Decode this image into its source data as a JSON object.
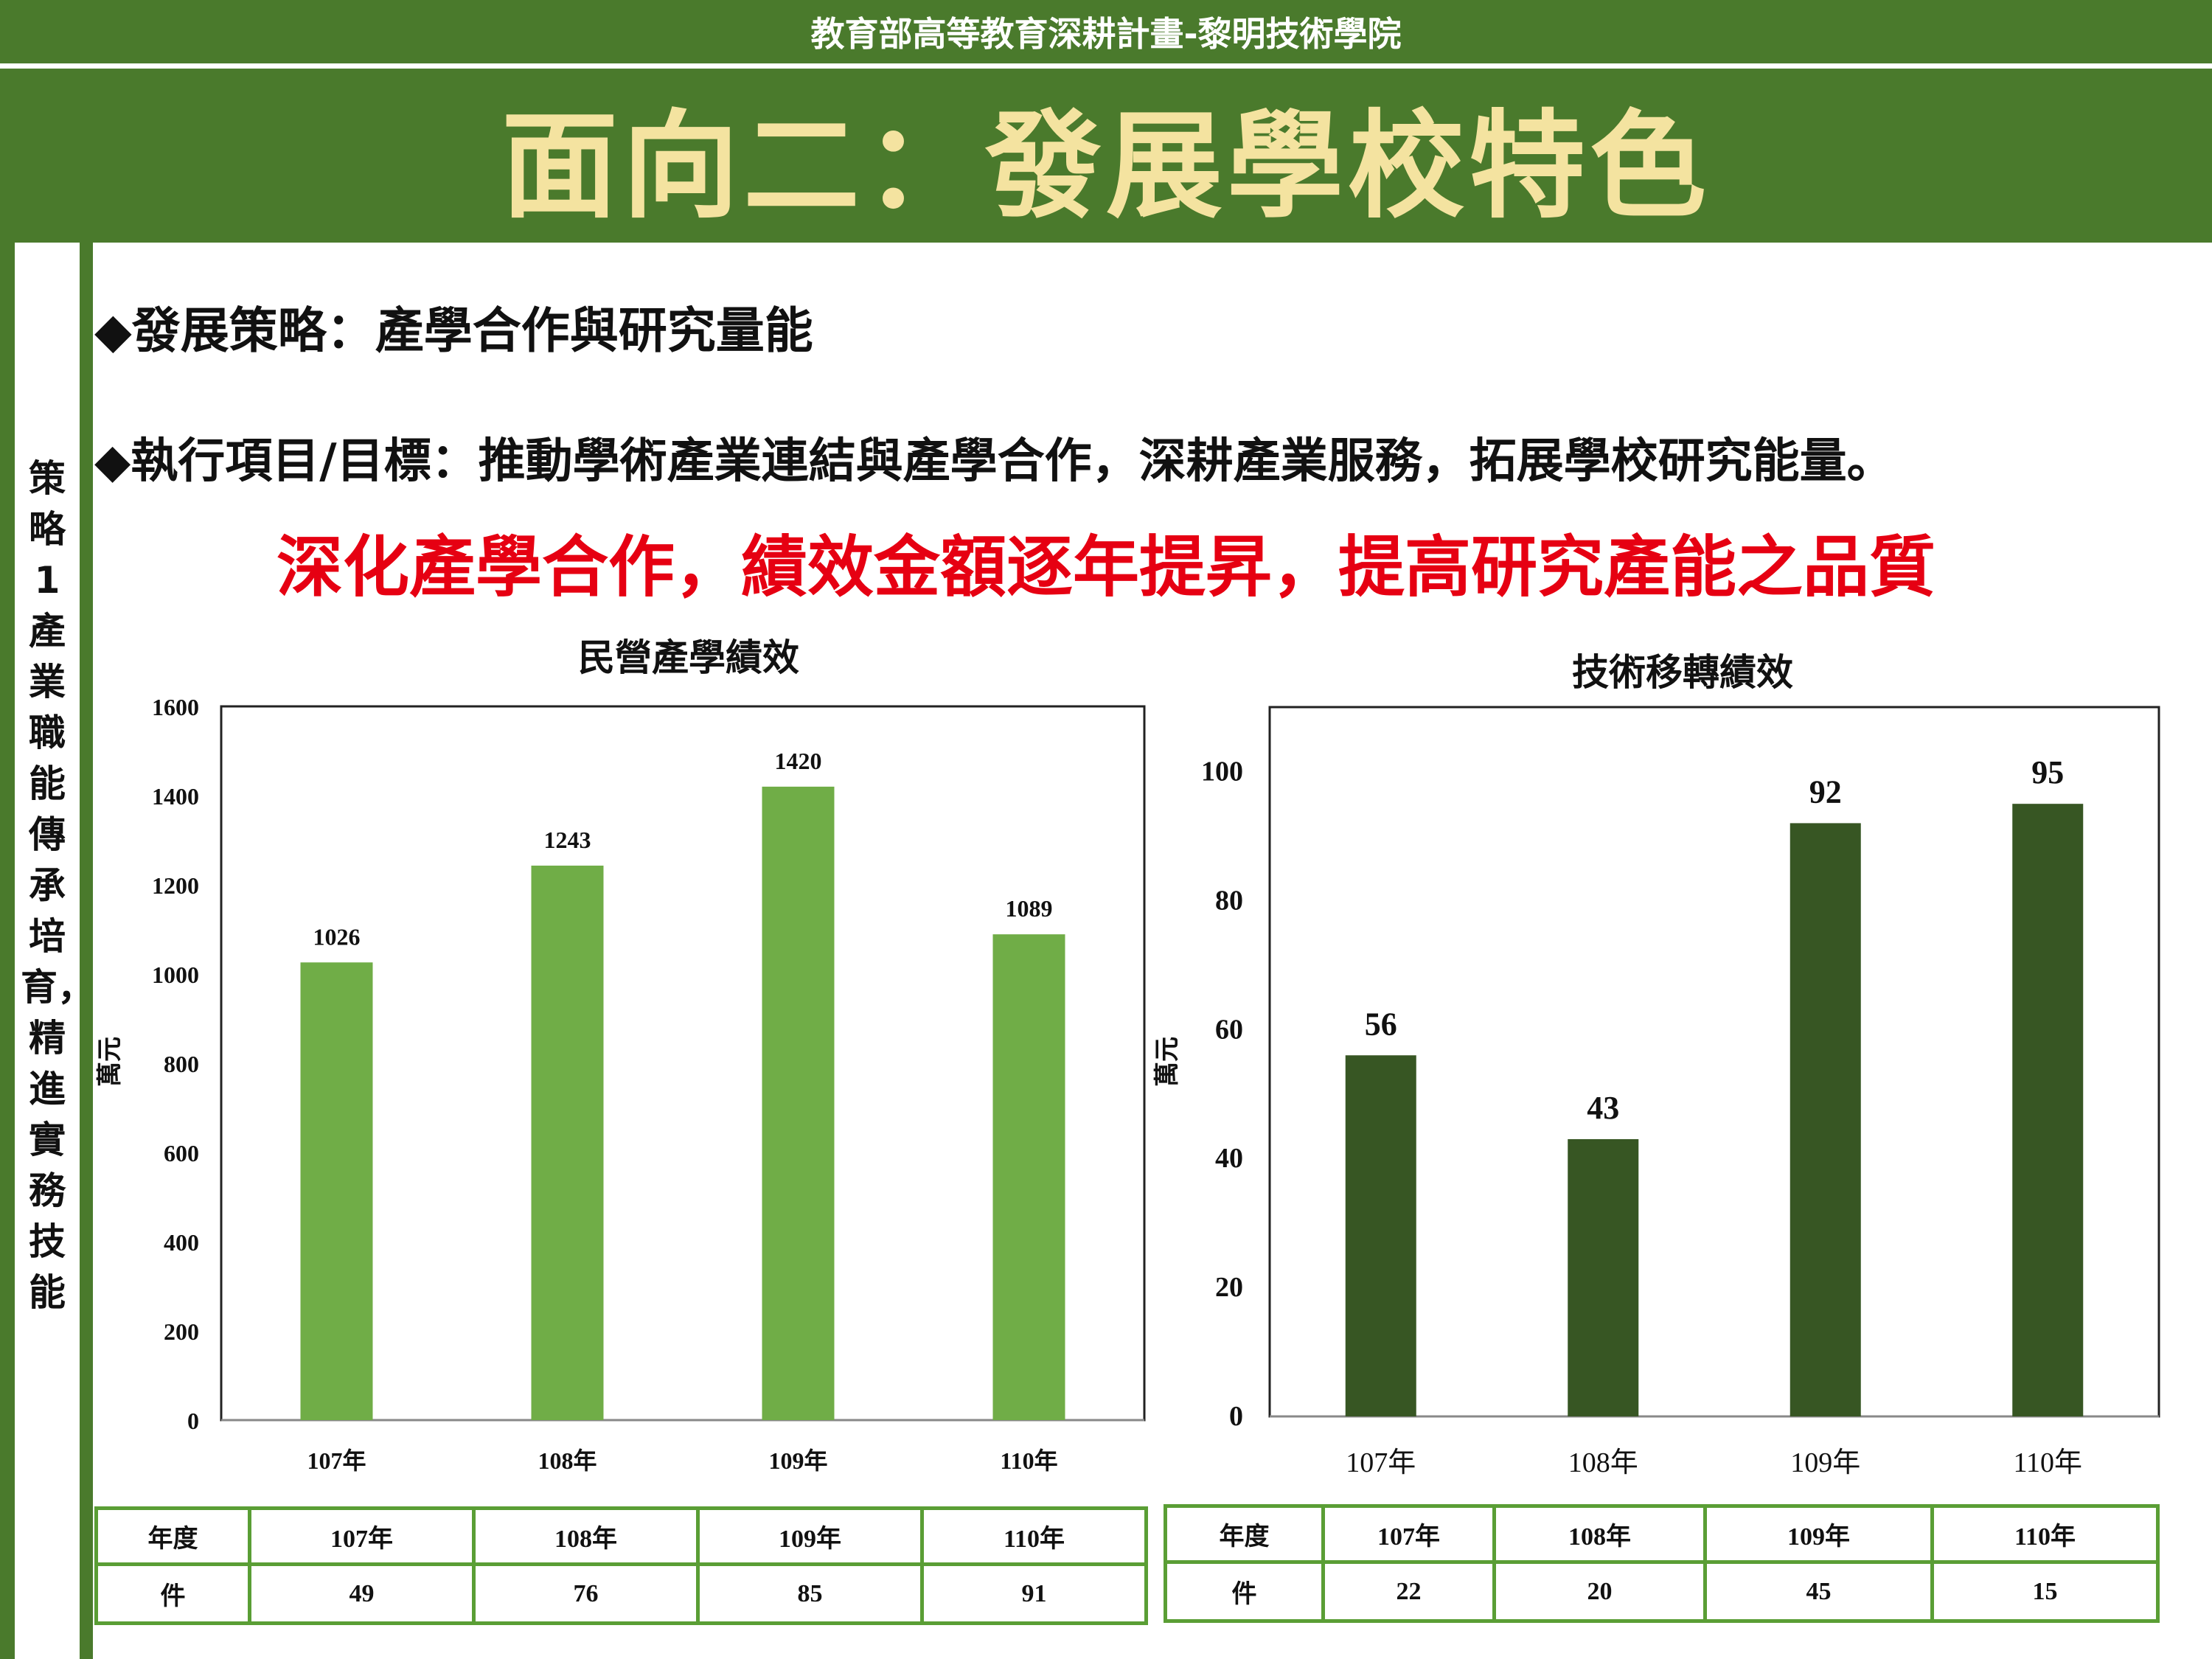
{
  "header": {
    "top_title": "教育部高等教育深耕計畫-黎明技術學院",
    "main_title": "面向二：發展學校特色"
  },
  "sidebar": {
    "text": "策略1產業職能傳承培育，精進實務技能"
  },
  "content": {
    "strategy": "◆發展策略：產學合作與研究量能",
    "execution": "◆執行項目/目標：推動學術產業連結與產學合作，深耕產業服務，拓展學校研究能量。",
    "headline": "深化產學合作，績效金額逐年提昇，提高研究產能之品質"
  },
  "colors": {
    "header_bg": "#4a7a2c",
    "title_text": "#f4e3a0",
    "headline": "#e60012",
    "bar_left": "#70ad47",
    "bar_right": "#375623",
    "table_border": "#5a9e35"
  },
  "chart_data": [
    {
      "type": "bar",
      "title": "民營產學績效",
      "ylabel": "萬元",
      "categories": [
        "107年",
        "108年",
        "109年",
        "110年"
      ],
      "values": [
        1026,
        1243,
        1420,
        1089
      ],
      "ylim": [
        0,
        1600
      ],
      "yticks": [
        0,
        200,
        400,
        600,
        800,
        1000,
        1200,
        1400,
        1600
      ],
      "grid": false,
      "table": {
        "row_labels": [
          "年度",
          "件"
        ],
        "counts": [
          "49",
          "76",
          "85",
          "91"
        ]
      }
    },
    {
      "type": "bar",
      "title": "技術移轉績效",
      "ylabel": "萬元",
      "categories": [
        "107年",
        "108年",
        "109年",
        "110年"
      ],
      "values": [
        56,
        43,
        92,
        95
      ],
      "ylim": [
        0,
        110
      ],
      "yticks": [
        0,
        20,
        40,
        60,
        80,
        100
      ],
      "grid": false,
      "table": {
        "row_labels": [
          "年度",
          "件"
        ],
        "counts": [
          "22",
          "20",
          "45",
          "15"
        ]
      }
    }
  ]
}
